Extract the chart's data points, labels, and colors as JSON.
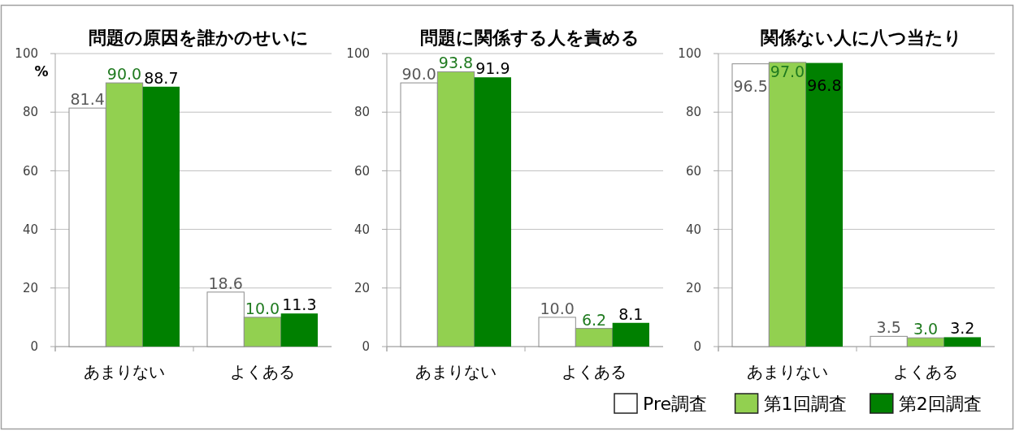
{
  "chart_data": [
    {
      "type": "bar",
      "title": "問題の原因を誰かのせいに",
      "ylabel": "%",
      "categories": [
        "あまりない",
        "よくある"
      ],
      "series": [
        {
          "color": "#ffffff",
          "values": [
            81.4,
            18.6
          ],
          "value_labels": [
            "81.4",
            "18.6"
          ]
        },
        {
          "color": "#92d050",
          "values": [
            90.0,
            10.0
          ],
          "value_labels": [
            "90.0",
            "10.0"
          ]
        },
        {
          "color": "#008000",
          "values": [
            88.7,
            11.3
          ],
          "value_labels": [
            "88.7",
            "11.3"
          ]
        }
      ],
      "ylim": [
        0,
        100
      ],
      "yticks": [
        0,
        20,
        40,
        60,
        80,
        100
      ],
      "grid": "y"
    },
    {
      "type": "bar",
      "title": "問題に関係する人を責める",
      "categories": [
        "あまりない",
        "よくある"
      ],
      "series": [
        {
          "color": "#ffffff",
          "values": [
            90.0,
            10.0
          ],
          "value_labels": [
            "90.0",
            "10.0"
          ]
        },
        {
          "color": "#92d050",
          "values": [
            93.8,
            6.2
          ],
          "value_labels": [
            "93.8",
            "6.2"
          ]
        },
        {
          "color": "#008000",
          "values": [
            91.9,
            8.1
          ],
          "value_labels": [
            "91.9",
            "8.1"
          ]
        }
      ],
      "ylim": [
        0,
        100
      ],
      "yticks": [
        0,
        20,
        40,
        60,
        80,
        100
      ],
      "grid": "y"
    },
    {
      "type": "bar",
      "title": "関係ない人に八つ当たり",
      "categories": [
        "あまりない",
        "よくある"
      ],
      "series": [
        {
          "name": "Pre調査",
          "color": "#ffffff",
          "values": [
            96.5,
            3.5
          ],
          "value_labels": [
            "96.5",
            "3.5"
          ]
        },
        {
          "name": "第1回調査",
          "color": "#92d050",
          "values": [
            97.0,
            3.0
          ],
          "value_labels": [
            "97.0",
            "3.0"
          ]
        },
        {
          "name": "第2回調査",
          "color": "#008000",
          "values": [
            96.8,
            3.2
          ],
          "value_labels": [
            "96.8",
            "3.2"
          ]
        }
      ],
      "ylim": [
        0,
        100
      ],
      "yticks": [
        0,
        20,
        40,
        60,
        80,
        100
      ],
      "grid": "y",
      "legend": "bottom right"
    }
  ]
}
